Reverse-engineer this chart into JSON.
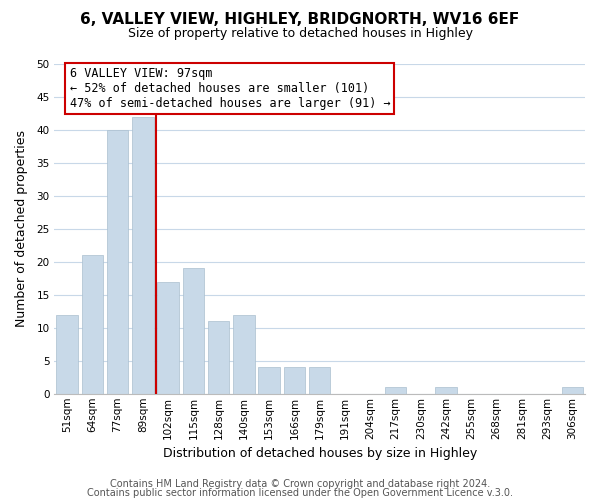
{
  "title": "6, VALLEY VIEW, HIGHLEY, BRIDGNORTH, WV16 6EF",
  "subtitle": "Size of property relative to detached houses in Highley",
  "xlabel": "Distribution of detached houses by size in Highley",
  "ylabel": "Number of detached properties",
  "bar_labels": [
    "51sqm",
    "64sqm",
    "77sqm",
    "89sqm",
    "102sqm",
    "115sqm",
    "128sqm",
    "140sqm",
    "153sqm",
    "166sqm",
    "179sqm",
    "191sqm",
    "204sqm",
    "217sqm",
    "230sqm",
    "242sqm",
    "255sqm",
    "268sqm",
    "281sqm",
    "293sqm",
    "306sqm"
  ],
  "bar_values": [
    12,
    21,
    40,
    42,
    17,
    19,
    11,
    12,
    4,
    4,
    4,
    0,
    0,
    1,
    0,
    1,
    0,
    0,
    0,
    0,
    1
  ],
  "bar_color": "#c8d9e8",
  "bar_edge_color": "#aabfcf",
  "marker_label": "6 VALLEY VIEW: 97sqm",
  "annotation_line1": "← 52% of detached houses are smaller (101)",
  "annotation_line2": "47% of semi-detached houses are larger (91) →",
  "vline_color": "#cc0000",
  "vline_x": 3.5,
  "ylim": [
    0,
    50
  ],
  "yticks": [
    0,
    5,
    10,
    15,
    20,
    25,
    30,
    35,
    40,
    45,
    50
  ],
  "footer1": "Contains HM Land Registry data © Crown copyright and database right 2024.",
  "footer2": "Contains public sector information licensed under the Open Government Licence v.3.0.",
  "bg_color": "#ffffff",
  "grid_color": "#c8d8e8",
  "annotation_box_color": "#ffffff",
  "annotation_box_edge": "#cc0000",
  "title_fontsize": 11,
  "subtitle_fontsize": 9,
  "axis_label_fontsize": 9,
  "tick_fontsize": 7.5,
  "annotation_fontsize": 8.5,
  "footer_fontsize": 7
}
